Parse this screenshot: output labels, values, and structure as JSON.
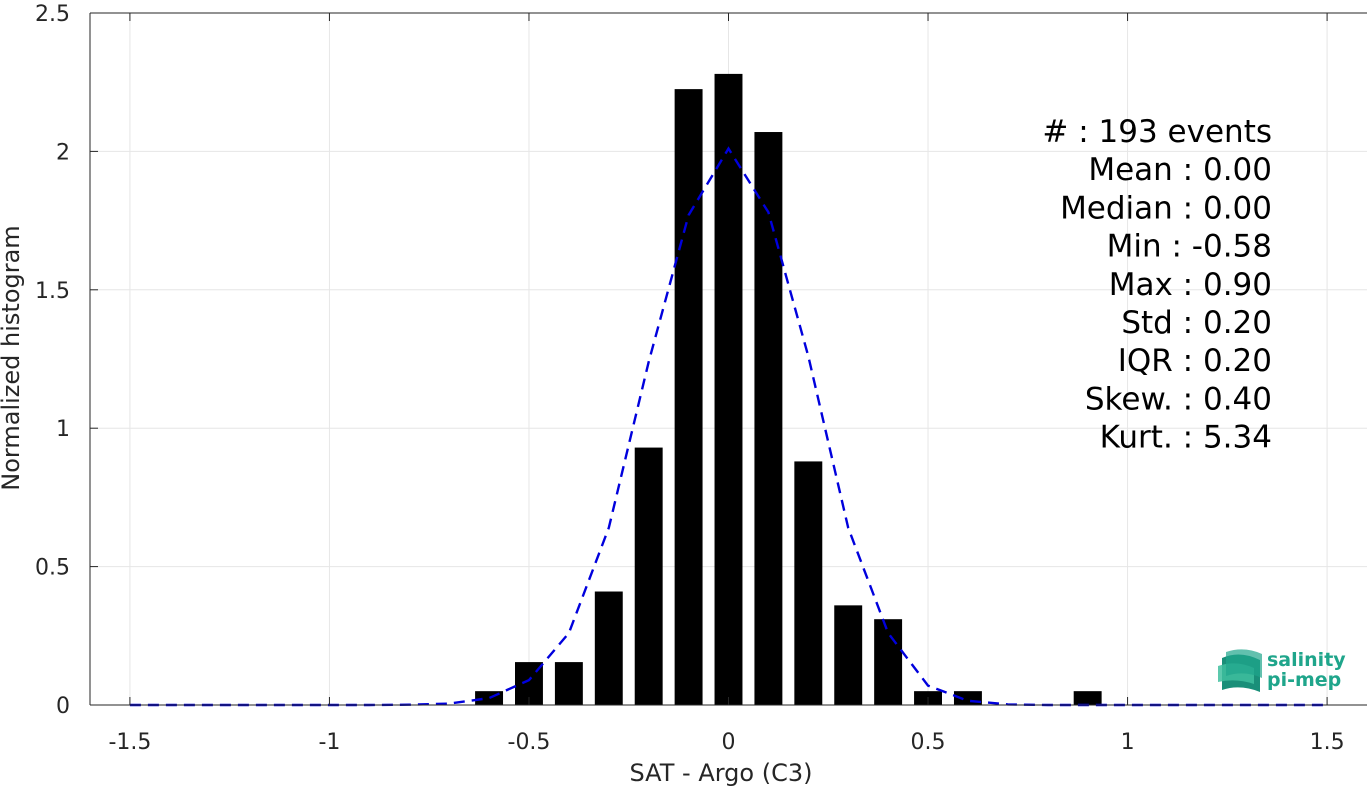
{
  "chart_data": {
    "type": "bar",
    "xlabel": "SAT - Argo (C3)",
    "ylabel": "Normalized histogram",
    "xlim": [
      -1.6,
      1.6
    ],
    "ylim": [
      0,
      2.5
    ],
    "xticks": [
      -1.5,
      -1,
      -0.5,
      0,
      0.5,
      1,
      1.5
    ],
    "xtick_labels": [
      "-1.5",
      "-1",
      "-0.5",
      "0",
      "0.5",
      "1",
      "1.5"
    ],
    "yticks": [
      0,
      0.5,
      1,
      1.5,
      2,
      2.5
    ],
    "ytick_labels": [
      "0",
      "0.5",
      "1",
      "1.5",
      "2",
      "2.5"
    ],
    "grid": true,
    "bar_color": "#000000",
    "bar_width": 0.07,
    "bars": [
      {
        "x": -0.6,
        "value": 0.05
      },
      {
        "x": -0.5,
        "value": 0.155
      },
      {
        "x": -0.4,
        "value": 0.155
      },
      {
        "x": -0.3,
        "value": 0.41
      },
      {
        "x": -0.2,
        "value": 0.93
      },
      {
        "x": -0.1,
        "value": 2.225
      },
      {
        "x": 0.0,
        "value": 2.28
      },
      {
        "x": 0.1,
        "value": 2.07
      },
      {
        "x": 0.2,
        "value": 0.88
      },
      {
        "x": 0.3,
        "value": 0.36
      },
      {
        "x": 0.4,
        "value": 0.31
      },
      {
        "x": 0.5,
        "value": 0.05
      },
      {
        "x": 0.6,
        "value": 0.05
      },
      {
        "x": 0.9,
        "value": 0.05
      }
    ],
    "fit_line": {
      "style": "dashed",
      "color": "#0000dd",
      "x": [
        -1.5,
        -1.4,
        -1.3,
        -1.2,
        -1.1,
        -1.0,
        -0.9,
        -0.8,
        -0.7,
        -0.6,
        -0.5,
        -0.4,
        -0.3,
        -0.2,
        -0.1,
        0.0,
        0.1,
        0.2,
        0.3,
        0.4,
        0.5,
        0.6,
        0.7,
        0.8,
        0.9,
        1.0,
        1.1,
        1.2,
        1.3,
        1.4,
        1.5
      ],
      "y": [
        0,
        0,
        0,
        0,
        0,
        0,
        0,
        0.001,
        0.005,
        0.025,
        0.09,
        0.26,
        0.64,
        1.24,
        1.77,
        2.01,
        1.78,
        1.26,
        0.64,
        0.26,
        0.07,
        0.015,
        0.002,
        0,
        0,
        0,
        0,
        0,
        0,
        0,
        0
      ]
    },
    "annotations": [
      "#  : 193 events",
      "Mean : 0.00",
      "Median : 0.00",
      "Min : -0.58",
      "Max : 0.90",
      "Std : 0.20",
      "IQR : 0.20",
      "Skew. : 0.40",
      "Kurt. : 5.34"
    ]
  },
  "logo": {
    "line1": "salinity",
    "line2": "pi-mep",
    "color": "#1fa58b"
  }
}
